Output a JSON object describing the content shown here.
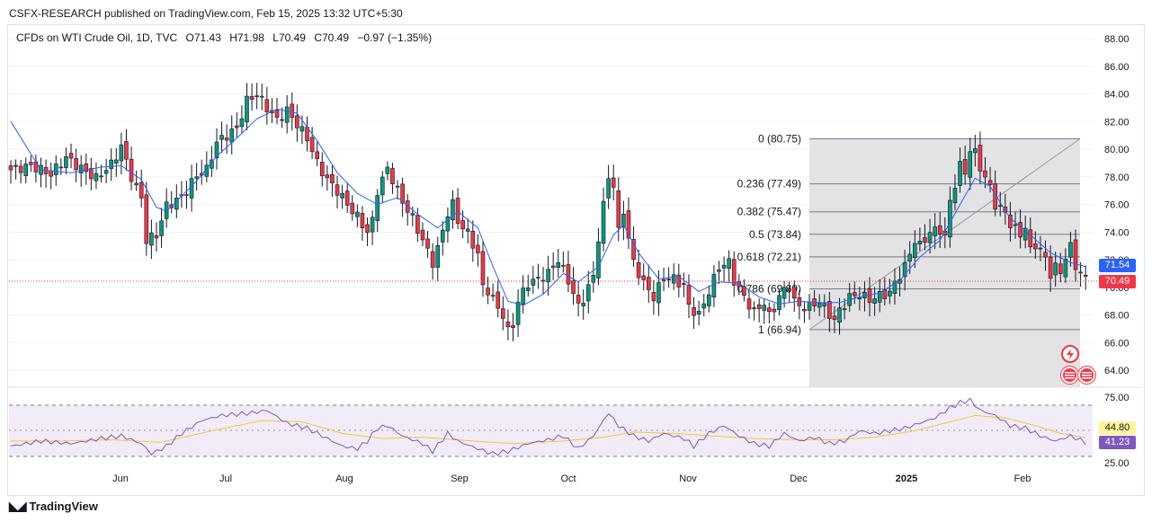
{
  "header": {
    "publisher": "CSFX-RESEARCH published on TradingView.com, Feb 15, 2025 13:32 UTC+5:30"
  },
  "legend": {
    "symbol": "CFDs on WTI Crude Oil, 1D, TVC",
    "open": "O71.43",
    "high": "H71.98",
    "low": "L70.49",
    "close": "C70.49",
    "change": "−0.97 (−1.35%)"
  },
  "footer": {
    "brand": "TradingView",
    "logo_icon": "tradingview-logo-icon"
  },
  "colors": {
    "up": "#089981",
    "down": "#f23645",
    "ma": "#2962ff",
    "rsi": "#7e57c2",
    "rsi_ma": "#f7c531",
    "fib_zone": "#e3e3e5"
  },
  "chart_data": {
    "type": "candlestick",
    "symbol": "CFDs on WTI Crude Oil, 1D, TVC",
    "ylim": [
      63.0,
      89.0
    ],
    "price_ticks": [
      "88.00",
      "86.00",
      "84.00",
      "82.00",
      "80.00",
      "78.00",
      "76.00",
      "74.00",
      "72.00",
      "70.00",
      "68.00",
      "66.00",
      "64.00"
    ],
    "x_labels": [
      "Jun",
      "Jul",
      "Aug",
      "Sep",
      "Oct",
      "Nov",
      "Dec",
      "2025",
      "Feb"
    ],
    "x_label_bold": "2025",
    "last_price": "70.49",
    "ma_value": "71.54",
    "fib_levels": [
      {
        "ratio": "0",
        "price": 80.75,
        "label": "0 (80.75)"
      },
      {
        "ratio": "0.236",
        "price": 77.49,
        "label": "0.236 (77.49)"
      },
      {
        "ratio": "0.382",
        "price": 75.47,
        "label": "0.382 (75.47)"
      },
      {
        "ratio": "0.5",
        "price": 73.84,
        "label": "0.5 (73.84)"
      },
      {
        "ratio": "0.618",
        "price": 72.21,
        "label": "0.618 (72.21)"
      },
      {
        "ratio": "0.786",
        "price": 69.89,
        "label": "0.786 (69.89)"
      },
      {
        "ratio": "1",
        "price": 66.94,
        "label": "1 (66.94)"
      }
    ],
    "price_path": [
      [
        0,
        78.5
      ],
      [
        4,
        78.8
      ],
      [
        8,
        78.2
      ],
      [
        11,
        79.4
      ],
      [
        14,
        78.6
      ],
      [
        17,
        77.9
      ],
      [
        20,
        78.9
      ],
      [
        22,
        80.2
      ],
      [
        24,
        78.0
      ],
      [
        26,
        76.5
      ],
      [
        27,
        73.4
      ],
      [
        29,
        73.8
      ],
      [
        31,
        75.9
      ],
      [
        34,
        76.5
      ],
      [
        37,
        78.1
      ],
      [
        39,
        78.5
      ],
      [
        41,
        80.5
      ],
      [
        43,
        81.0
      ],
      [
        45,
        81.5
      ],
      [
        47,
        83.5
      ],
      [
        49,
        84.0
      ],
      [
        51,
        83.0
      ],
      [
        53,
        82.1
      ],
      [
        55,
        82.8
      ],
      [
        57,
        81.8
      ],
      [
        59,
        80.8
      ],
      [
        61,
        79.0
      ],
      [
        63,
        77.8
      ],
      [
        65,
        77.0
      ],
      [
        67,
        76.0
      ],
      [
        69,
        75.1
      ],
      [
        71,
        74.0
      ],
      [
        72,
        74.8
      ],
      [
        73,
        77.0
      ],
      [
        75,
        78.6
      ],
      [
        76,
        77.8
      ],
      [
        78,
        76.2
      ],
      [
        80,
        75.0
      ],
      [
        82,
        73.4
      ],
      [
        84,
        71.8
      ],
      [
        85,
        72.8
      ],
      [
        87,
        75.4
      ],
      [
        88,
        76.0
      ],
      [
        89,
        74.8
      ],
      [
        91,
        73.9
      ],
      [
        93,
        72.4
      ],
      [
        94,
        70.0
      ],
      [
        95,
        69.8
      ],
      [
        97,
        68.5
      ],
      [
        98,
        68.0
      ],
      [
        99,
        66.8
      ],
      [
        100,
        67.3
      ],
      [
        101,
        69.0
      ],
      [
        103,
        70.3
      ],
      [
        105,
        70.6
      ],
      [
        107,
        71.0
      ],
      [
        109,
        72.0
      ],
      [
        111,
        70.5
      ],
      [
        113,
        68.6
      ],
      [
        114,
        69.2
      ],
      [
        116,
        70.8
      ],
      [
        117,
        73.6
      ],
      [
        118,
        75.9
      ],
      [
        119,
        78.0
      ],
      [
        120,
        77.4
      ],
      [
        121,
        74.0
      ],
      [
        122,
        75.6
      ],
      [
        123,
        73.5
      ],
      [
        124,
        71.8
      ],
      [
        126,
        70.3
      ],
      [
        128,
        69.3
      ],
      [
        130,
        70.7
      ],
      [
        132,
        70.6
      ],
      [
        134,
        70.1
      ],
      [
        135,
        68.6
      ],
      [
        137,
        68.0
      ],
      [
        139,
        69.7
      ],
      [
        141,
        71.5
      ],
      [
        143,
        71.8
      ],
      [
        144,
        70.5
      ],
      [
        146,
        69.3
      ],
      [
        148,
        68.2
      ],
      [
        150,
        68.9
      ],
      [
        151,
        67.9
      ],
      [
        152,
        68.5
      ],
      [
        153,
        69.4
      ],
      [
        155,
        70.1
      ],
      [
        156,
        69.0
      ],
      [
        157,
        68.6
      ],
      [
        159,
        68.6
      ],
      [
        161,
        69.0
      ],
      [
        162,
        68.5
      ],
      [
        164,
        67.6
      ],
      [
        165,
        68.3
      ],
      [
        167,
        69.3
      ],
      [
        169,
        69.5
      ],
      [
        171,
        69.1
      ],
      [
        173,
        69.4
      ],
      [
        175,
        69.6
      ],
      [
        176,
        70.3
      ],
      [
        178,
        71.5
      ],
      [
        180,
        73.4
      ],
      [
        181,
        73.0
      ],
      [
        183,
        74.0
      ],
      [
        185,
        74.2
      ],
      [
        186,
        73.6
      ],
      [
        187,
        76.2
      ],
      [
        189,
        78.8
      ],
      [
        190,
        78.3
      ],
      [
        191,
        80.0
      ],
      [
        192,
        79.7
      ],
      [
        193,
        78.7
      ],
      [
        195,
        77.2
      ],
      [
        196,
        76.0
      ],
      [
        198,
        75.4
      ],
      [
        199,
        74.6
      ],
      [
        201,
        73.8
      ],
      [
        202,
        74.4
      ],
      [
        203,
        72.6
      ],
      [
        204,
        73.1
      ],
      [
        205,
        72.7
      ],
      [
        206,
        72.0
      ],
      [
        207,
        71.0
      ],
      [
        208,
        71.5
      ],
      [
        209,
        71.0
      ],
      [
        210,
        72.3
      ],
      [
        211,
        72.9
      ],
      [
        212,
        71.5
      ],
      [
        213,
        71.1
      ],
      [
        214,
        70.5
      ]
    ],
    "ma_path": [
      [
        0,
        82.0
      ],
      [
        6,
        78.5
      ],
      [
        12,
        78.3
      ],
      [
        18,
        78.7
      ],
      [
        22,
        78.8
      ],
      [
        26,
        77.8
      ],
      [
        29,
        75.8
      ],
      [
        31,
        75.5
      ],
      [
        34,
        76.6
      ],
      [
        37,
        77.7
      ],
      [
        41,
        79.5
      ],
      [
        45,
        80.8
      ],
      [
        49,
        82.2
      ],
      [
        53,
        82.9
      ],
      [
        57,
        82.6
      ],
      [
        61,
        80.6
      ],
      [
        65,
        78.3
      ],
      [
        69,
        76.8
      ],
      [
        73,
        76.0
      ],
      [
        77,
        76.5
      ],
      [
        81,
        75.3
      ],
      [
        85,
        74.3
      ],
      [
        89,
        75.5
      ],
      [
        93,
        74.3
      ],
      [
        96,
        71.5
      ],
      [
        99,
        69.0
      ],
      [
        102,
        68.7
      ],
      [
        106,
        69.5
      ],
      [
        110,
        71.0
      ],
      [
        113,
        70.4
      ],
      [
        117,
        71.5
      ],
      [
        120,
        73.8
      ],
      [
        122,
        74.5
      ],
      [
        125,
        72.5
      ],
      [
        129,
        70.6
      ],
      [
        133,
        70.8
      ],
      [
        137,
        69.7
      ],
      [
        141,
        70.4
      ],
      [
        145,
        70.3
      ],
      [
        149,
        69.3
      ],
      [
        153,
        68.8
      ],
      [
        157,
        69.0
      ],
      [
        161,
        68.9
      ],
      [
        165,
        68.9
      ],
      [
        169,
        69.3
      ],
      [
        173,
        69.6
      ],
      [
        177,
        70.5
      ],
      [
        181,
        72.2
      ],
      [
        185,
        73.4
      ],
      [
        189,
        76.0
      ],
      [
        192,
        77.9
      ],
      [
        195,
        77.3
      ],
      [
        199,
        75.0
      ],
      [
        203,
        73.8
      ],
      [
        207,
        72.5
      ],
      [
        211,
        71.8
      ],
      [
        214,
        71.5
      ]
    ],
    "rsi": {
      "ylim": [
        25,
        75
      ],
      "ticks": [
        "75.00",
        "25.00"
      ],
      "band_upper": 70,
      "band_lower": 30,
      "middle": 50,
      "value": "41.23",
      "ma_value": "44.80",
      "rsi_path": [
        [
          0,
          38
        ],
        [
          6,
          42
        ],
        [
          12,
          40
        ],
        [
          18,
          44
        ],
        [
          22,
          46
        ],
        [
          26,
          40
        ],
        [
          28,
          32
        ],
        [
          31,
          38
        ],
        [
          34,
          48
        ],
        [
          38,
          58
        ],
        [
          42,
          62
        ],
        [
          45,
          63
        ],
        [
          48,
          64
        ],
        [
          51,
          66
        ],
        [
          55,
          56
        ],
        [
          59,
          52
        ],
        [
          63,
          44
        ],
        [
          66,
          38
        ],
        [
          69,
          36
        ],
        [
          71,
          42
        ],
        [
          73,
          52
        ],
        [
          75,
          54
        ],
        [
          78,
          46
        ],
        [
          82,
          40
        ],
        [
          84,
          34
        ],
        [
          87,
          48
        ],
        [
          89,
          42
        ],
        [
          93,
          36
        ],
        [
          96,
          32
        ],
        [
          99,
          34
        ],
        [
          103,
          40
        ],
        [
          107,
          43
        ],
        [
          110,
          46
        ],
        [
          113,
          36
        ],
        [
          116,
          46
        ],
        [
          119,
          64
        ],
        [
          121,
          54
        ],
        [
          124,
          46
        ],
        [
          127,
          42
        ],
        [
          130,
          48
        ],
        [
          134,
          44
        ],
        [
          136,
          38
        ],
        [
          139,
          48
        ],
        [
          142,
          54
        ],
        [
          145,
          46
        ],
        [
          148,
          40
        ],
        [
          151,
          38
        ],
        [
          154,
          48
        ],
        [
          157,
          42
        ],
        [
          160,
          45
        ],
        [
          163,
          40
        ],
        [
          166,
          42
        ],
        [
          169,
          50
        ],
        [
          172,
          48
        ],
        [
          175,
          50
        ],
        [
          178,
          52
        ],
        [
          181,
          56
        ],
        [
          184,
          60
        ],
        [
          187,
          68
        ],
        [
          189,
          72
        ],
        [
          191,
          74
        ],
        [
          193,
          66
        ],
        [
          196,
          62
        ],
        [
          199,
          54
        ],
        [
          202,
          52
        ],
        [
          205,
          46
        ],
        [
          208,
          42
        ],
        [
          211,
          46
        ],
        [
          214,
          41
        ]
      ],
      "ma_path": [
        [
          0,
          42
        ],
        [
          10,
          42
        ],
        [
          20,
          43
        ],
        [
          30,
          41
        ],
        [
          40,
          50
        ],
        [
          50,
          58
        ],
        [
          58,
          57
        ],
        [
          66,
          48
        ],
        [
          74,
          44
        ],
        [
          82,
          45
        ],
        [
          92,
          42
        ],
        [
          100,
          40
        ],
        [
          110,
          42
        ],
        [
          118,
          45
        ],
        [
          124,
          49
        ],
        [
          132,
          48
        ],
        [
          140,
          46
        ],
        [
          148,
          44
        ],
        [
          156,
          43
        ],
        [
          164,
          43
        ],
        [
          172,
          45
        ],
        [
          180,
          50
        ],
        [
          186,
          56
        ],
        [
          192,
          62
        ],
        [
          198,
          60
        ],
        [
          204,
          54
        ],
        [
          209,
          48
        ],
        [
          214,
          44.8
        ]
      ]
    }
  }
}
